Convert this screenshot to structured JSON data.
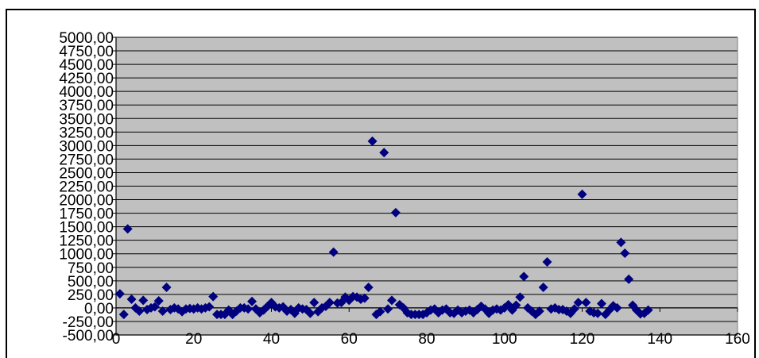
{
  "chart_data": {
    "type": "scatter",
    "title": "",
    "xlabel": "",
    "ylabel": "",
    "xlim": [
      0,
      160
    ],
    "ylim": [
      -500,
      5000
    ],
    "x_ticks": [
      0,
      20,
      40,
      60,
      80,
      100,
      120,
      140,
      160
    ],
    "x_tick_labels": [
      "0",
      "20",
      "40",
      "60",
      "80",
      "100",
      "120",
      "140",
      "160"
    ],
    "y_ticks": [
      -500,
      -250,
      0,
      250,
      500,
      750,
      1000,
      1250,
      1500,
      1750,
      2000,
      2250,
      2500,
      2750,
      3000,
      3250,
      3500,
      3750,
      4000,
      4250,
      4500,
      4750,
      5000
    ],
    "y_tick_labels": [
      "-500,00",
      "-250,00",
      "0,00",
      "250,00",
      "500,00",
      "750,00",
      "1000,00",
      "1250,00",
      "1500,00",
      "1750,00",
      "2000,00",
      "2250,00",
      "2500,00",
      "2750,00",
      "3000,00",
      "3250,00",
      "3500,00",
      "3750,00",
      "4000,00",
      "4250,00",
      "4500,00",
      "4750,00",
      "5000,00"
    ],
    "grid": "horizontal",
    "legend": "none",
    "colors": {
      "plot_background": "#c0c0c0",
      "marker": "#000080",
      "gridline": "#000000",
      "frame": "#000000"
    },
    "series": [
      {
        "points": [
          [
            1,
            260
          ],
          [
            2,
            -120
          ],
          [
            3,
            1460
          ],
          [
            4,
            160
          ],
          [
            5,
            0
          ],
          [
            6,
            -60
          ],
          [
            7,
            140
          ],
          [
            8,
            -30
          ],
          [
            9,
            0
          ],
          [
            10,
            20
          ],
          [
            11,
            130
          ],
          [
            12,
            -60
          ],
          [
            13,
            380
          ],
          [
            14,
            -30
          ],
          [
            15,
            0
          ],
          [
            16,
            -20
          ],
          [
            17,
            -70
          ],
          [
            18,
            -20
          ],
          [
            19,
            -10
          ],
          [
            20,
            -20
          ],
          [
            21,
            0
          ],
          [
            22,
            -20
          ],
          [
            23,
            0
          ],
          [
            24,
            20
          ],
          [
            25,
            210
          ],
          [
            26,
            -120
          ],
          [
            27,
            -120
          ],
          [
            28,
            -120
          ],
          [
            29,
            -40
          ],
          [
            30,
            -120
          ],
          [
            31,
            -60
          ],
          [
            32,
            0
          ],
          [
            33,
            0
          ],
          [
            34,
            -20
          ],
          [
            35,
            120
          ],
          [
            36,
            -20
          ],
          [
            37,
            -90
          ],
          [
            38,
            -40
          ],
          [
            39,
            30
          ],
          [
            40,
            100
          ],
          [
            41,
            20
          ],
          [
            42,
            0
          ],
          [
            43,
            20
          ],
          [
            44,
            -60
          ],
          [
            45,
            -30
          ],
          [
            46,
            -100
          ],
          [
            47,
            0
          ],
          [
            48,
            -20
          ],
          [
            49,
            -30
          ],
          [
            50,
            -100
          ],
          [
            51,
            100
          ],
          [
            52,
            -70
          ],
          [
            53,
            0
          ],
          [
            54,
            30
          ],
          [
            55,
            100
          ],
          [
            56,
            1030
          ],
          [
            57,
            90
          ],
          [
            58,
            100
          ],
          [
            59,
            200
          ],
          [
            60,
            140
          ],
          [
            61,
            210
          ],
          [
            62,
            200
          ],
          [
            63,
            160
          ],
          [
            64,
            180
          ],
          [
            65,
            380
          ],
          [
            66,
            3080
          ],
          [
            67,
            -120
          ],
          [
            68,
            -70
          ],
          [
            69,
            2870
          ],
          [
            70,
            -20
          ],
          [
            71,
            140
          ],
          [
            72,
            1760
          ],
          [
            73,
            60
          ],
          [
            74,
            0
          ],
          [
            75,
            -90
          ],
          [
            76,
            -120
          ],
          [
            77,
            -120
          ],
          [
            78,
            -120
          ],
          [
            79,
            -120
          ],
          [
            80,
            -90
          ],
          [
            81,
            -40
          ],
          [
            82,
            -20
          ],
          [
            83,
            -90
          ],
          [
            84,
            -40
          ],
          [
            85,
            -20
          ],
          [
            86,
            -90
          ],
          [
            87,
            -100
          ],
          [
            88,
            -40
          ],
          [
            89,
            -90
          ],
          [
            90,
            -60
          ],
          [
            91,
            -40
          ],
          [
            92,
            -90
          ],
          [
            93,
            -30
          ],
          [
            94,
            30
          ],
          [
            95,
            -20
          ],
          [
            96,
            -100
          ],
          [
            97,
            -40
          ],
          [
            98,
            -20
          ],
          [
            99,
            -40
          ],
          [
            100,
            0
          ],
          [
            101,
            60
          ],
          [
            102,
            -40
          ],
          [
            103,
            50
          ],
          [
            104,
            200
          ],
          [
            105,
            580
          ],
          [
            106,
            0
          ],
          [
            107,
            -60
          ],
          [
            108,
            -120
          ],
          [
            109,
            -60
          ],
          [
            110,
            380
          ],
          [
            111,
            850
          ],
          [
            112,
            -20
          ],
          [
            113,
            0
          ],
          [
            114,
            -30
          ],
          [
            115,
            -30
          ],
          [
            116,
            -60
          ],
          [
            117,
            -100
          ],
          [
            118,
            -20
          ],
          [
            119,
            100
          ],
          [
            120,
            2100
          ],
          [
            121,
            100
          ],
          [
            122,
            -60
          ],
          [
            123,
            -90
          ],
          [
            124,
            -100
          ],
          [
            125,
            80
          ],
          [
            126,
            -120
          ],
          [
            127,
            -40
          ],
          [
            128,
            40
          ],
          [
            129,
            0
          ],
          [
            130,
            1210
          ],
          [
            131,
            1010
          ],
          [
            132,
            530
          ],
          [
            133,
            50
          ],
          [
            134,
            -40
          ],
          [
            135,
            -110
          ],
          [
            136,
            -100
          ],
          [
            137,
            -40
          ]
        ]
      }
    ]
  }
}
